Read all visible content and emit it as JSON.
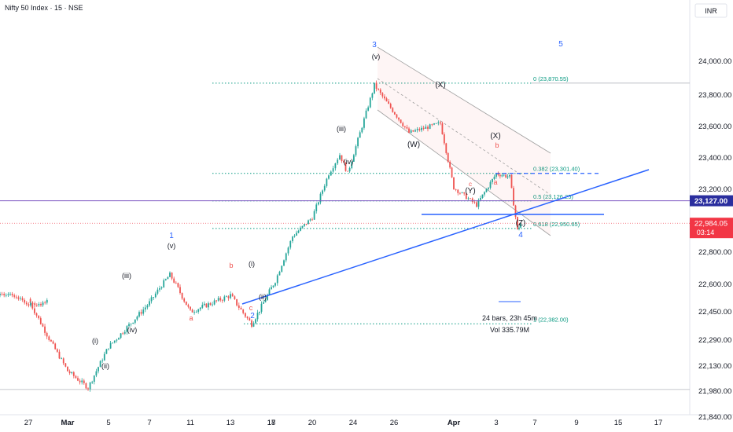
{
  "header": {
    "title": "Nifty 50 Index · 15 · NSE",
    "currency": "INR"
  },
  "colors": {
    "up": "#26a69a",
    "down": "#ef5350",
    "trend": "#2962ff",
    "fib": "#089981",
    "channel": "#9e9e9e",
    "hline": "#7e57c2",
    "price_badge": "#f23645",
    "level_badge": "#2a2e9e"
  },
  "chart_data": {
    "type": "candlestick",
    "title": "Nifty 50 Index · 15 · NSE",
    "y_ticks": [
      "24,000.00",
      "23,800.00",
      "23,600.00",
      "23,400.00",
      "23,200.00",
      "22,800.00",
      "22,600.00",
      "22,450.00",
      "22,290.00",
      "22,130.00",
      "21,980.00",
      "21,840.00"
    ],
    "x_ticks": [
      "27",
      "Mar",
      "5",
      "7",
      "11",
      "13",
      "17",
      "18",
      "20",
      "24",
      "26",
      "Apr",
      "3",
      "7",
      "9",
      "15",
      "17"
    ],
    "wave_path": [
      {
        "x": "Feb 27",
        "y": 22520
      },
      {
        "x": "Mar 3",
        "y": 22100
      },
      {
        "x": "Mar 4",
        "y": 22000
      },
      {
        "x": "Mar 5",
        "y": 22250
      },
      {
        "x": "Mar 7",
        "y": 22500
      },
      {
        "x": "Mar 10",
        "y": 22660
      },
      {
        "x": "Mar 11",
        "y": 22450
      },
      {
        "x": "Mar 13",
        "y": 22540
      },
      {
        "x": "Mar 15",
        "y": 22380
      },
      {
        "x": "Mar 18",
        "y": 22620
      },
      {
        "x": "Mar 19",
        "y": 22900
      },
      {
        "x": "Mar 20",
        "y": 23020
      },
      {
        "x": "Mar 21",
        "y": 23300
      },
      {
        "x": "Mar 22",
        "y": 23420
      },
      {
        "x": "Mar 23",
        "y": 23300
      },
      {
        "x": "Mar 24",
        "y": 23860
      },
      {
        "x": "Mar 26",
        "y": 23560
      },
      {
        "x": "Mar 28",
        "y": 23620
      },
      {
        "x": "Mar 31",
        "y": 23210
      },
      {
        "x": "Apr 2",
        "y": 23100
      },
      {
        "x": "Apr 3",
        "y": 23300
      },
      {
        "x": "Apr 4",
        "y": 23280
      },
      {
        "x": "Apr 5",
        "y": 22940
      },
      {
        "x": "Apr 6",
        "y": 22984
      }
    ],
    "last_price": "22,984.05",
    "countdown": "03:14",
    "marked_level": "23,127.00",
    "fib_levels": [
      {
        "ratio": "0",
        "value": "23,870.55",
        "label": "0 (23,870.55)"
      },
      {
        "ratio": "0.382",
        "value": "23,301.40",
        "label": "0.382 (23,301.40)"
      },
      {
        "ratio": "0.5",
        "value": "23,126.25",
        "label": "0.5 (23,126.25)"
      },
      {
        "ratio": "0.618",
        "value": "22,950.65",
        "label": "0.618 (22,950.65)"
      },
      {
        "ratio": "1",
        "value": "22,382.00",
        "label": "1 (22,382.00)"
      }
    ],
    "measure": {
      "bars": "24 bars, 23h 45m",
      "volume": "Vol 335.79M"
    },
    "wave_labels": {
      "major": [
        "1",
        "2",
        "3",
        "4",
        "5"
      ],
      "minor": [
        "(i)",
        "(ii)",
        "(iii)",
        "(iv)",
        "(v)",
        "(i)",
        "(ii)",
        "(iii)",
        "(iv)",
        "(v)"
      ],
      "corrective": [
        "(W)",
        "(X)",
        "(Y)",
        "(X)",
        "(Z)",
        "a",
        "b",
        "c",
        "a",
        "b",
        "c"
      ]
    },
    "grid": false
  }
}
